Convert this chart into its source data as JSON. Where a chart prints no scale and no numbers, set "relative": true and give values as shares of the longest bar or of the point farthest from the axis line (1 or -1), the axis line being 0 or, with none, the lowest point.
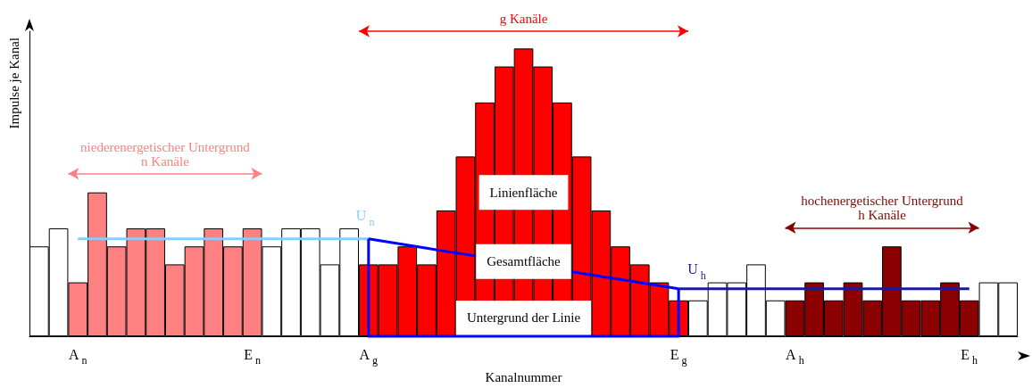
{
  "chart_data": {
    "type": "bar",
    "relative": true,
    "xlabel": "Kanalnummer",
    "ylabel": "Impulse je Kanal",
    "categories": [
      null,
      null,
      "A$_{n}$",
      null,
      null,
      null,
      null,
      null,
      null,
      null,
      null,
      "E$_{n}$",
      null,
      null,
      null,
      null,
      null,
      "A$_{g}$",
      null,
      null,
      null,
      null,
      null,
      null,
      null,
      null,
      null,
      null,
      null,
      null,
      null,
      null,
      null,
      "E$_{g}$",
      null,
      null,
      null,
      null,
      null,
      "A$_{h}$",
      null,
      null,
      null,
      null,
      null,
      null,
      null,
      null,
      "E$_{h}$",
      null,
      null
    ],
    "series": [
      {
        "values": [
          0.3125,
          0.375,
          0.1875,
          0.5,
          0.3125,
          0.375,
          0.375,
          0.25,
          0.3125,
          0.375,
          0.3125,
          0.375,
          0.3125,
          0.375,
          0.375,
          0.25,
          0.375,
          0.25,
          0.25,
          0.3125,
          0.25,
          0.4375,
          0.625,
          0.8125,
          0.9375,
          1,
          0.9375,
          0.8125,
          0.625,
          0.4375,
          0.3125,
          0.25,
          0.1875,
          0.125,
          0.125,
          0.1875,
          0.1875,
          0.25,
          0.125,
          0.125,
          0.1875,
          0.125,
          0.1875,
          0.125,
          0.3125,
          0.125,
          0.125,
          0.1875,
          0.125,
          0.1875,
          0.1875
        ],
        "colors": [
          "#ffffff",
          "#ffffff",
          "#ff8080",
          "#ff8080",
          "#ff8080",
          "#ff8080",
          "#ff8080",
          "#ff8080",
          "#ff8080",
          "#ff8080",
          "#ff8080",
          "#ff8080",
          "#ffffff",
          "#ffffff",
          "#ffffff",
          "#ffffff",
          "#ffffff",
          "#ff0000",
          "#ff0000",
          "#ff0000",
          "#ff0000",
          "#ff0000",
          "#ff0000",
          "#ff0000",
          "#ff0000",
          "#ff0000",
          "#ff0000",
          "#ff0000",
          "#ff0000",
          "#ff0000",
          "#ff0000",
          "#ff0000",
          "#ff0000",
          "#ff0000",
          "#ffffff",
          "#ffffff",
          "#ffffff",
          "#ffffff",
          "#ffffff",
          "#8b0000",
          "#8b0000",
          "#8b0000",
          "#8b0000",
          "#8b0000",
          "#8b0000",
          "#8b0000",
          "#8b0000",
          "#8b0000",
          "#8b0000",
          "#ffffff",
          "#ffffff"
        ]
      },
      {
        "type": "line",
        "name": "U$_{n}$",
        "color": "#87cefa",
        "values": [
          null,
          null,
          0.339,
          0.339,
          0.339,
          0.339,
          0.339,
          0.339,
          0.339,
          0.339,
          0.339,
          0.339,
          0.339,
          0.339,
          0.339,
          0.339,
          0.339,
          0.339,
          null,
          null,
          null,
          null,
          null,
          null,
          null,
          null,
          null,
          null,
          null,
          null,
          null,
          null,
          null,
          null,
          null,
          null,
          null,
          null,
          null,
          null,
          null,
          null,
          null,
          null,
          null,
          null,
          null,
          null,
          null,
          null,
          null
        ]
      },
      {
        "type": "line",
        "color": "#0000ff",
        "values": [
          null,
          null,
          null,
          null,
          null,
          null,
          null,
          null,
          null,
          null,
          null,
          null,
          null,
          null,
          null,
          null,
          null,
          0.339,
          0.328,
          0.317,
          0.306,
          0.295,
          0.285,
          null,
          null,
          null,
          null,
          null,
          null,
          0.208,
          0.198,
          0.187,
          0.176,
          0.165,
          null,
          null,
          null,
          null,
          null,
          null,
          null,
          null,
          null,
          null,
          null,
          null,
          null,
          null,
          null,
          null,
          null
        ]
      },
      {
        "type": "line",
        "name": "U$_{h}$",
        "color": "#1a1a99",
        "values": [
          null,
          null,
          null,
          null,
          null,
          null,
          null,
          null,
          null,
          null,
          null,
          null,
          null,
          null,
          null,
          null,
          null,
          null,
          null,
          null,
          null,
          null,
          null,
          null,
          null,
          null,
          null,
          null,
          null,
          null,
          null,
          null,
          null,
          0.165,
          0.165,
          0.165,
          0.165,
          0.165,
          0.165,
          0.165,
          0.165,
          0.165,
          0.165,
          0.165,
          0.165,
          0.165,
          0.165,
          0.165,
          0.165,
          null,
          null
        ]
      }
    ],
    "annotations": [
      "niederenergetischer Untergrund\nn Kanäle",
      "g Kanäle",
      "hochenergetischer Untergrund\nh Kanäle",
      "Linienfläche",
      "Gesamtfläche",
      "Untergrund der Linie"
    ]
  }
}
